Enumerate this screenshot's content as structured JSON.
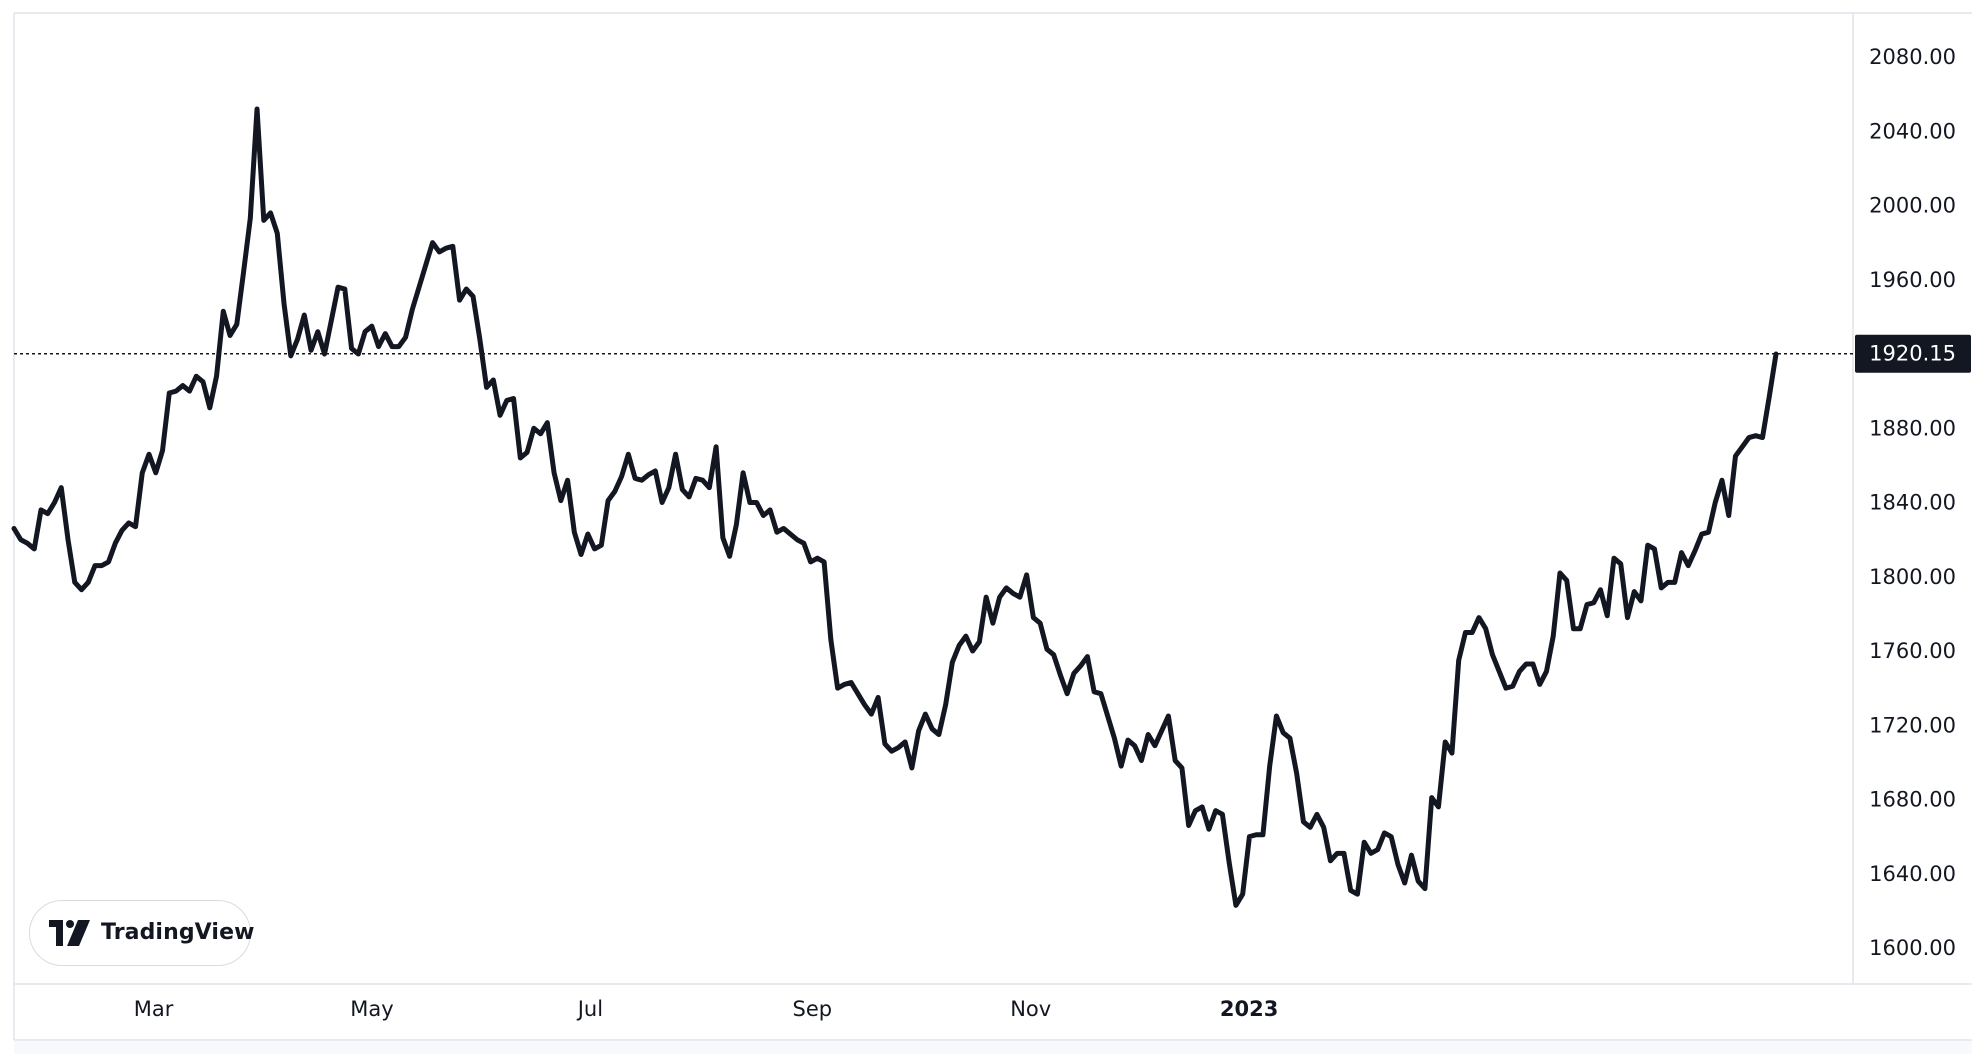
{
  "branding": {
    "logo_text": "TradingView"
  },
  "colors": {
    "line": "#131722",
    "badge_bg": "#131722",
    "badge_text": "#ffffff",
    "grid_border": "#e0e3eb",
    "text": "#131722"
  },
  "chart_data": {
    "type": "line",
    "title": "",
    "xlabel": "",
    "ylabel": "",
    "ylim": [
      1600,
      2080
    ],
    "y_ticks": [
      "2080.00",
      "2040.00",
      "2000.00",
      "1960.00",
      "1920.00",
      "1880.00",
      "1840.00",
      "1800.00",
      "1760.00",
      "1720.00",
      "1680.00",
      "1640.00",
      "1600.00"
    ],
    "x_ticks": [
      "Mar",
      "May",
      "Jul",
      "Sep",
      "Nov",
      "2023"
    ],
    "x_ticks_bold": [
      "2023"
    ],
    "last_price": 1920.15,
    "last_price_label": "1920.15",
    "grid": false,
    "legend": "none",
    "x_start_date": "2022-01-21",
    "series": [
      {
        "name": "",
        "values": [
          1826,
          1820,
          1818,
          1815,
          1836,
          1834,
          1840,
          1848,
          1820,
          1797,
          1793,
          1797,
          1806,
          1806,
          1808,
          1818,
          1825,
          1829,
          1827,
          1856,
          1866,
          1856,
          1868,
          1899,
          1900,
          1903,
          1900,
          1908,
          1905,
          1891,
          1908,
          1943,
          1930,
          1936,
          1964,
          1993,
          2052,
          1992,
          1996,
          1985,
          1947,
          1919,
          1928,
          1941,
          1922,
          1932,
          1920,
          1938,
          1956,
          1955,
          1923,
          1920,
          1932,
          1935,
          1924,
          1931,
          1924,
          1924,
          1929,
          1944,
          1956,
          1968,
          1980,
          1975,
          1977,
          1978,
          1949,
          1955,
          1951,
          1928,
          1902,
          1906,
          1887,
          1895,
          1896,
          1864,
          1867,
          1880,
          1877,
          1883,
          1856,
          1841,
          1852,
          1824,
          1812,
          1823,
          1815,
          1817,
          1841,
          1846,
          1854,
          1866,
          1853,
          1852,
          1855,
          1857,
          1840,
          1848,
          1866,
          1847,
          1843,
          1853,
          1852,
          1848,
          1870,
          1821,
          1811,
          1828,
          1856,
          1840,
          1840,
          1833,
          1836,
          1824,
          1826,
          1823,
          1820,
          1818,
          1808,
          1810,
          1808,
          1766,
          1740,
          1742,
          1743,
          1737,
          1731,
          1726,
          1735,
          1710,
          1706,
          1708,
          1711,
          1697,
          1717,
          1726,
          1718,
          1715,
          1731,
          1754,
          1763,
          1768,
          1760,
          1765,
          1789,
          1775,
          1789,
          1794,
          1791,
          1789,
          1801,
          1778,
          1775,
          1761,
          1758,
          1747,
          1737,
          1748,
          1752,
          1757,
          1738,
          1737,
          1725,
          1713,
          1698,
          1712,
          1709,
          1701,
          1715,
          1709,
          1717,
          1725,
          1701,
          1697,
          1666,
          1674,
          1676,
          1664,
          1674,
          1672,
          1646,
          1623,
          1629,
          1660,
          1661,
          1661,
          1698,
          1725,
          1716,
          1713,
          1694,
          1668,
          1665,
          1672,
          1665,
          1647,
          1651,
          1651,
          1631,
          1629,
          1657,
          1651,
          1653,
          1662,
          1660,
          1645,
          1635,
          1650,
          1636,
          1632,
          1681,
          1676,
          1711,
          1705,
          1755,
          1770,
          1770,
          1778,
          1772,
          1758,
          1749,
          1740,
          1741,
          1749,
          1753,
          1753,
          1742,
          1749,
          1768,
          1802,
          1798,
          1772,
          1772,
          1785,
          1786,
          1793,
          1779,
          1810,
          1807,
          1778,
          1792,
          1787,
          1817,
          1815,
          1794,
          1797,
          1797,
          1813,
          1806,
          1814,
          1823,
          1824,
          1840,
          1852,
          1833,
          1865,
          1870,
          1875,
          1876,
          1875,
          1897,
          1920
        ]
      }
    ]
  }
}
